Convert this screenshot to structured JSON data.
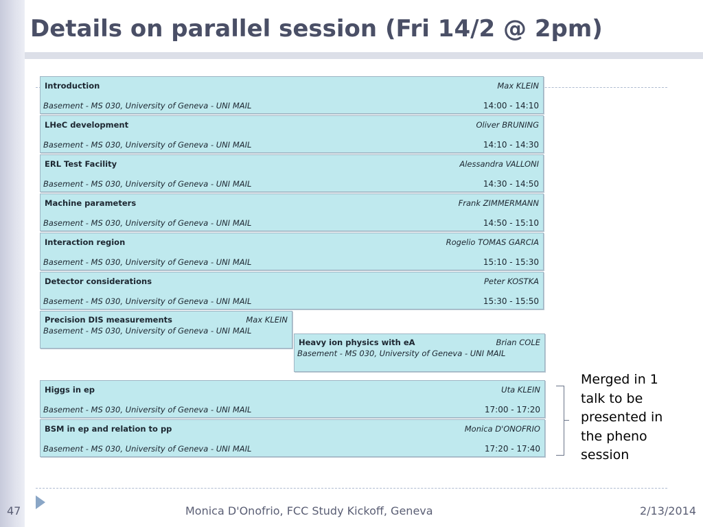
{
  "title": "Details on parallel session (Fri 14/2 @ 2pm)",
  "sessions": [
    {
      "title": "Introduction",
      "speaker": "Max KLEIN",
      "location": "Basement - MS 030, University of Geneva - UNI MAIL",
      "time": "14:00 - 14:10"
    },
    {
      "title": "LHeC development",
      "speaker": "Oliver BRUNING",
      "location": "Basement - MS 030, University of Geneva - UNI MAIL",
      "time": "14:10 - 14:30"
    },
    {
      "title": "ERL Test Facility",
      "speaker": "Alessandra VALLONI",
      "location": "Basement - MS 030, University of Geneva - UNI MAIL",
      "time": "14:30 - 14:50"
    },
    {
      "title": "Machine parameters",
      "speaker": "Frank ZIMMERMANN",
      "location": "Basement - MS 030, University of Geneva - UNI MAIL",
      "time": "14:50 - 15:10"
    },
    {
      "title": "Interaction region",
      "speaker": "Rogelio TOMAS GARCIA",
      "location": "Basement - MS 030, University of Geneva - UNI MAIL",
      "time": "15:10 - 15:30"
    },
    {
      "title": "Detector considerations",
      "speaker": "Peter KOSTKA",
      "location": "Basement - MS 030, University of Geneva - UNI MAIL",
      "time": "15:30 - 15:50"
    }
  ],
  "parallel_sessions": [
    {
      "title": "Precision DIS measurements",
      "speaker": "Max KLEIN",
      "location": "Basement - MS 030, University of Geneva - UNI MAIL"
    },
    {
      "title": "Heavy ion physics with eA",
      "speaker": "Brian COLE",
      "location": "Basement - MS 030, University of Geneva - UNI MAIL"
    }
  ],
  "merged_sessions": [
    {
      "title": "Higgs in ep",
      "speaker": "Uta KLEIN",
      "location": "Basement - MS 030, University of Geneva - UNI MAIL",
      "time": "17:00 - 17:20"
    },
    {
      "title": "BSM in ep and relation to pp",
      "speaker": "Monica D'ONOFRIO",
      "location": "Basement - MS 030, University of Geneva - UNI MAIL",
      "time": "17:20 - 17:40"
    }
  ],
  "note": "Merged in 1 talk to be presented in the pheno session",
  "footer": {
    "slide_number": "47",
    "center": "Monica D'Onofrio, FCC Study Kickoff, Geneva",
    "date": "2/13/2014"
  }
}
